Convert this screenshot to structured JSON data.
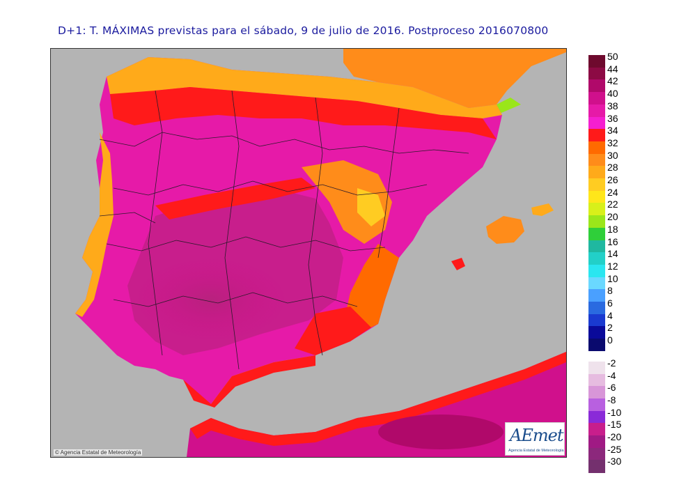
{
  "title": "D+1: T. MÁXIMAS previstas para el sábado, 9 de julio de 2016. Postproceso 2016070800",
  "copyright": "© Agencia Estatal de Meteorología",
  "logo": {
    "text": "AEmet",
    "subtitle": "Agencia Estatal de Meteorología"
  },
  "legend": {
    "positive": [
      {
        "label": "50",
        "color": "#6e0a2e"
      },
      {
        "label": "44",
        "color": "#8c0a44"
      },
      {
        "label": "42",
        "color": "#b0096a"
      },
      {
        "label": "40",
        "color": "#d0108c"
      },
      {
        "label": "38",
        "color": "#e61aa8"
      },
      {
        "label": "36",
        "color": "#f51fd0"
      },
      {
        "label": "34",
        "color": "#ff1a1a"
      },
      {
        "label": "32",
        "color": "#ff6a00"
      },
      {
        "label": "30",
        "color": "#ff8c1a"
      },
      {
        "label": "28",
        "color": "#ffaa1a"
      },
      {
        "label": "26",
        "color": "#ffcc22"
      },
      {
        "label": "24",
        "color": "#ffe61a"
      },
      {
        "label": "22",
        "color": "#d8f01a"
      },
      {
        "label": "20",
        "color": "#9ae61a"
      },
      {
        "label": "18",
        "color": "#2fcf3a"
      },
      {
        "label": "16",
        "color": "#1fb8a0"
      },
      {
        "label": "14",
        "color": "#22d0c8"
      },
      {
        "label": "12",
        "color": "#2ae6f0"
      },
      {
        "label": "10",
        "color": "#6ad8ff"
      },
      {
        "label": "8",
        "color": "#4aa0ff"
      },
      {
        "label": "6",
        "color": "#2a6ae0"
      },
      {
        "label": "4",
        "color": "#1a3ad0"
      },
      {
        "label": "2",
        "color": "#0a0a9a"
      },
      {
        "label": "0",
        "color": "#0a0a6e"
      }
    ],
    "negative": [
      {
        "label": "-2",
        "color": "#efe2ec"
      },
      {
        "label": "-4",
        "color": "#e6bce0"
      },
      {
        "label": "-6",
        "color": "#d896d8"
      },
      {
        "label": "-8",
        "color": "#b860e0"
      },
      {
        "label": "-10",
        "color": "#8a2ad8"
      },
      {
        "label": "-15",
        "color": "#c81e8c"
      },
      {
        "label": "-20",
        "color": "#a01a84"
      },
      {
        "label": "-25",
        "color": "#8c287c"
      },
      {
        "label": "-30",
        "color": "#74306e"
      }
    ]
  }
}
